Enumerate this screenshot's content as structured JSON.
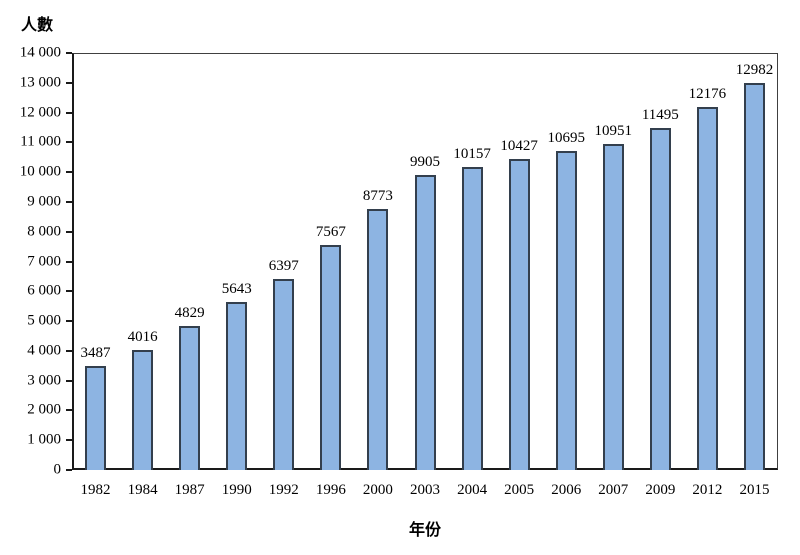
{
  "chart_data": {
    "type": "bar",
    "title": "",
    "ylabel": "人數",
    "xlabel": "年份",
    "categories": [
      "1982",
      "1984",
      "1987",
      "1990",
      "1992",
      "1996",
      "2000",
      "2003",
      "2004",
      "2005",
      "2006",
      "2007",
      "2009",
      "2012",
      "2015"
    ],
    "values": [
      3487,
      4016,
      4829,
      5643,
      6397,
      7567,
      8773,
      9905,
      10157,
      10427,
      10695,
      10951,
      11495,
      12176,
      12982
    ],
    "ylim": [
      0,
      14000
    ],
    "ytick_step": 1000,
    "ytick_thousands_separator": " ",
    "grid": false,
    "legend_position": "none",
    "data_labels": true,
    "colors": {
      "bar_fill": "#8DB4E2",
      "bar_border": "#333F4D",
      "axis_line": "#1a1a1a",
      "text": "#000000"
    }
  }
}
